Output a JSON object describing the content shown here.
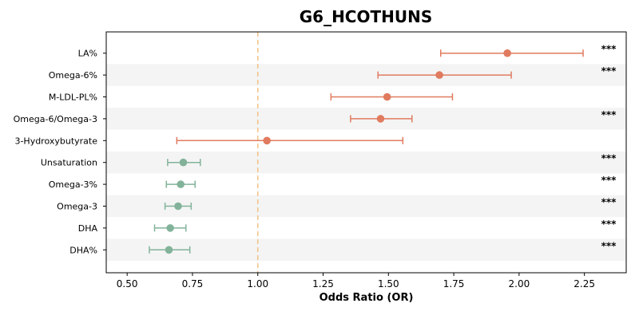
{
  "chart_data": {
    "type": "forest",
    "title": "G6_HCOTHUNS",
    "xlabel": "Odds Ratio (OR)",
    "ylabel": "",
    "xlim": [
      0.42,
      2.41
    ],
    "xticks": [
      0.5,
      0.75,
      1.0,
      1.25,
      1.5,
      1.75,
      2.0,
      2.25
    ],
    "xtick_labels": [
      "0.50",
      "0.75",
      "1.00",
      "1.25",
      "1.50",
      "1.75",
      "2.00",
      "2.25"
    ],
    "reference_line": 1.0,
    "reference_color": "#f2c48f",
    "row_shading": "alternating",
    "colors": {
      "positive": "#e07b5f",
      "negative": "#82b39a",
      "shade": "#f4f4f4"
    },
    "rows": [
      {
        "label": "LA%",
        "or": 1.955,
        "ci_low": 1.7,
        "ci_high": 2.245,
        "direction": "positive",
        "sig": "***"
      },
      {
        "label": "Omega-6%",
        "or": 1.695,
        "ci_low": 1.46,
        "ci_high": 1.97,
        "direction": "positive",
        "sig": "***"
      },
      {
        "label": "M-LDL-PL%",
        "or": 1.495,
        "ci_low": 1.28,
        "ci_high": 1.745,
        "direction": "positive",
        "sig": ""
      },
      {
        "label": "Omega-6/Omega-3",
        "or": 1.47,
        "ci_low": 1.355,
        "ci_high": 1.59,
        "direction": "positive",
        "sig": "***"
      },
      {
        "label": "3-Hydroxybutyrate",
        "or": 1.035,
        "ci_low": 0.69,
        "ci_high": 1.555,
        "direction": "positive",
        "sig": ""
      },
      {
        "label": "Unsaturation",
        "or": 0.715,
        "ci_low": 0.655,
        "ci_high": 0.78,
        "direction": "negative",
        "sig": "***"
      },
      {
        "label": "Omega-3%",
        "or": 0.705,
        "ci_low": 0.65,
        "ci_high": 0.76,
        "direction": "negative",
        "sig": "***"
      },
      {
        "label": "Omega-3",
        "or": 0.695,
        "ci_low": 0.645,
        "ci_high": 0.745,
        "direction": "negative",
        "sig": "***"
      },
      {
        "label": "DHA",
        "or": 0.665,
        "ci_low": 0.605,
        "ci_high": 0.725,
        "direction": "negative",
        "sig": "***"
      },
      {
        "label": "DHA%",
        "or": 0.66,
        "ci_low": 0.585,
        "ci_high": 0.74,
        "direction": "negative",
        "sig": "***"
      }
    ]
  }
}
